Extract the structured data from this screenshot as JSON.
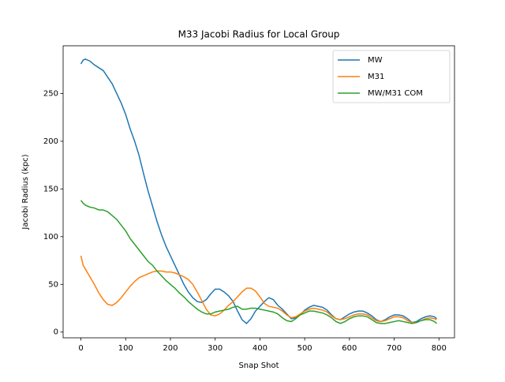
{
  "chart_data": {
    "type": "line",
    "title": "M33 Jacobi Radius for Local Group",
    "xlabel": "Snap Shot",
    "ylabel": "Jacobi Radius (kpc)",
    "x": [
      0,
      5,
      10,
      20,
      30,
      40,
      50,
      60,
      70,
      80,
      90,
      100,
      110,
      120,
      130,
      140,
      150,
      160,
      170,
      180,
      190,
      200,
      210,
      220,
      230,
      240,
      250,
      260,
      270,
      280,
      290,
      300,
      310,
      320,
      330,
      340,
      350,
      360,
      370,
      380,
      390,
      400,
      410,
      420,
      430,
      440,
      450,
      460,
      470,
      480,
      490,
      500,
      510,
      520,
      530,
      540,
      550,
      560,
      570,
      580,
      590,
      600,
      610,
      620,
      630,
      640,
      650,
      660,
      670,
      680,
      690,
      700,
      710,
      720,
      730,
      740,
      750,
      760,
      770,
      780,
      790,
      795
    ],
    "series": [
      {
        "name": "MW",
        "color": "#1f77b4",
        "values": [
          281,
          285,
          286,
          284,
          280,
          277,
          274,
          267,
          260,
          250,
          240,
          228,
          213,
          200,
          185,
          166,
          148,
          132,
          116,
          102,
          90,
          80,
          70,
          60,
          50,
          42,
          36,
          32,
          31,
          34,
          40,
          45,
          45,
          42,
          38,
          32,
          22,
          13,
          9,
          14,
          22,
          27,
          32,
          36,
          34,
          28,
          24,
          19,
          14,
          15,
          18,
          23,
          26,
          28,
          27,
          26,
          23,
          18,
          14,
          13,
          16,
          19,
          21,
          22,
          22,
          20,
          17,
          13,
          11,
          13,
          16,
          18,
          18,
          17,
          14,
          10,
          11,
          14,
          16,
          17,
          16,
          14
        ]
      },
      {
        "name": "M31",
        "color": "#ff7f0e",
        "values": [
          80,
          70,
          66,
          58,
          50,
          41,
          34,
          29,
          28,
          31,
          36,
          42,
          48,
          53,
          57,
          59,
          61,
          63,
          64,
          64,
          63,
          63,
          62,
          60,
          58,
          55,
          50,
          42,
          33,
          24,
          18,
          17,
          19,
          23,
          28,
          32,
          37,
          42,
          46,
          46,
          43,
          37,
          30,
          27,
          26,
          25,
          22,
          18,
          15,
          16,
          19,
          22,
          24,
          25,
          24,
          23,
          21,
          17,
          14,
          13,
          14,
          16,
          18,
          19,
          19,
          18,
          15,
          12,
          11,
          12,
          14,
          16,
          16,
          15,
          12,
          10,
          10,
          12,
          14,
          15,
          14,
          13
        ]
      },
      {
        "name": "MW/M31 COM",
        "color": "#2ca02c",
        "values": [
          138,
          135,
          133,
          131,
          130,
          128,
          128,
          126,
          122,
          118,
          112,
          106,
          98,
          92,
          86,
          80,
          74,
          70,
          64,
          59,
          54,
          50,
          46,
          41,
          37,
          32,
          28,
          24,
          21,
          19,
          19,
          21,
          22,
          23,
          24,
          26,
          27,
          24,
          24,
          25,
          25,
          24,
          23,
          22,
          21,
          19,
          15,
          12,
          11,
          14,
          18,
          20,
          22,
          22,
          21,
          20,
          18,
          15,
          11,
          9,
          11,
          14,
          16,
          17,
          17,
          16,
          13,
          10,
          9,
          9,
          10,
          11,
          12,
          11,
          10,
          9,
          10,
          12,
          13,
          13,
          11,
          9
        ]
      }
    ],
    "xlim": [
      -39.75,
      834.75
    ],
    "ylim": [
      -6,
      300
    ],
    "xticks": [
      0,
      100,
      200,
      300,
      400,
      500,
      600,
      700,
      800
    ],
    "yticks": [
      0,
      50,
      100,
      150,
      200,
      250
    ],
    "legend": "upper right"
  }
}
